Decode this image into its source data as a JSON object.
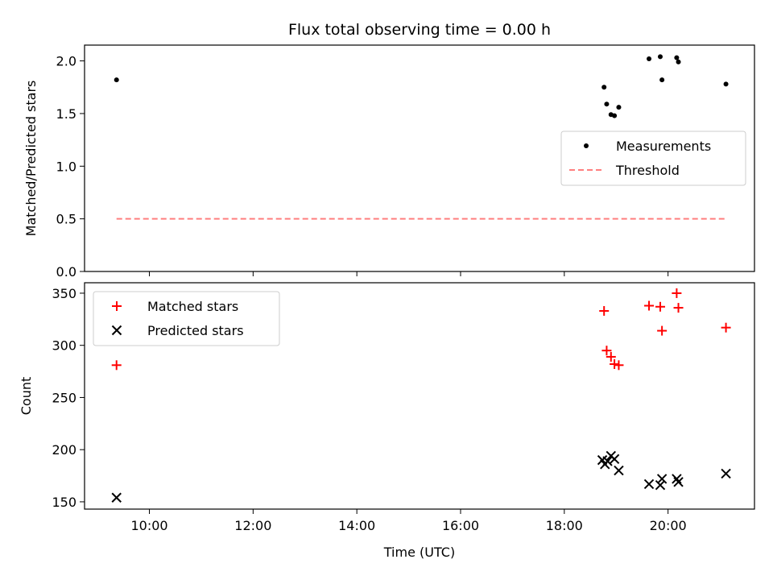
{
  "title": "Flux total observing time = 0.00 h",
  "xlabel": "Time (UTC)",
  "chart_data": [
    {
      "type": "scatter",
      "ylabel": "Matched/Predicted stars",
      "ylim": [
        0.0,
        2.15
      ],
      "yticks": [
        "0.0",
        "0.5",
        "1.0",
        "1.5",
        "2.0"
      ],
      "legend_position": "center-right",
      "series": [
        {
          "name": "Measurements",
          "marker": "dot",
          "color": "#000000",
          "points": [
            [
              "09:22",
              1.82
            ],
            [
              "18:46",
              1.75
            ],
            [
              "18:49",
              1.59
            ],
            [
              "18:54",
              1.49
            ],
            [
              "18:58",
              1.48
            ],
            [
              "19:03",
              1.56
            ],
            [
              "19:38",
              2.02
            ],
            [
              "19:51",
              2.04
            ],
            [
              "19:53",
              1.82
            ],
            [
              "20:10",
              2.03
            ],
            [
              "20:12",
              1.99
            ],
            [
              "21:07",
              1.78
            ]
          ]
        },
        {
          "name": "Threshold",
          "marker": "dashed-line",
          "color": "#ff7f7f",
          "points": [
            [
              "09:22",
              0.5
            ],
            [
              "21:07",
              0.5
            ]
          ]
        }
      ]
    },
    {
      "type": "scatter",
      "ylabel": "Count",
      "ylim": [
        143,
        360
      ],
      "yticks": [
        "150",
        "200",
        "250",
        "300",
        "350"
      ],
      "legend_position": "upper-left",
      "series": [
        {
          "name": "Matched stars",
          "marker": "plus",
          "color": "#ff0000",
          "points": [
            [
              "09:22",
              281
            ],
            [
              "18:46",
              333
            ],
            [
              "18:49",
              295
            ],
            [
              "18:54",
              289
            ],
            [
              "18:58",
              282
            ],
            [
              "19:03",
              281
            ],
            [
              "19:38",
              338
            ],
            [
              "19:51",
              337
            ],
            [
              "19:53",
              314
            ],
            [
              "20:10",
              350
            ],
            [
              "20:12",
              336
            ],
            [
              "21:07",
              317
            ]
          ]
        },
        {
          "name": "Predicted stars",
          "marker": "x",
          "color": "#000000",
          "points": [
            [
              "09:22",
              154
            ],
            [
              "18:44",
              190
            ],
            [
              "18:47",
              186
            ],
            [
              "18:50",
              189
            ],
            [
              "18:54",
              194
            ],
            [
              "18:58",
              191
            ],
            [
              "19:03",
              180
            ],
            [
              "19:38",
              167
            ],
            [
              "19:51",
              166
            ],
            [
              "19:53",
              172
            ],
            [
              "20:10",
              172
            ],
            [
              "20:12",
              169
            ],
            [
              "21:07",
              177
            ]
          ]
        }
      ]
    }
  ],
  "xaxis": {
    "range": [
      "08:45",
      "21:40"
    ],
    "ticks": [
      "10:00",
      "12:00",
      "14:00",
      "16:00",
      "18:00",
      "20:00"
    ]
  }
}
